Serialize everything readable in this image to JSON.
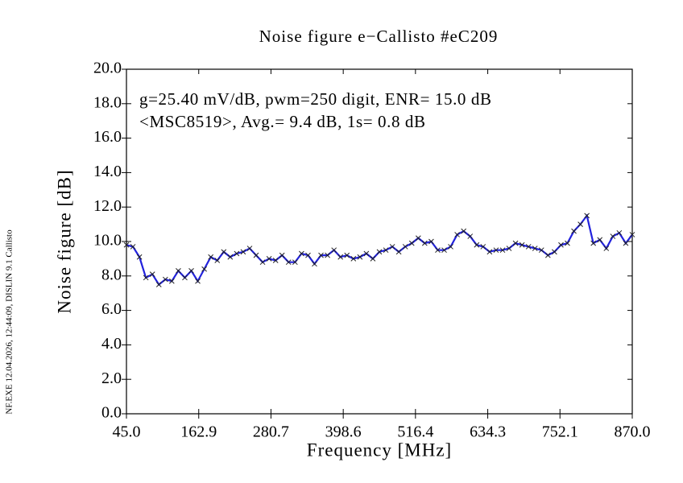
{
  "chart_data": {
    "type": "line",
    "title": "Noise figure e−Callisto #eC209",
    "annotations": [
      "g=25.40 mV/dB, pwm=250 digit, ENR= 15.0 dB",
      "<MSC8519>, Avg.= 9.4 dB, 1s= 0.8 dB"
    ],
    "side_text": "NF.EXE 12.04.2026, 12:44:09, DISLIN 9.1 Callisto",
    "xlabel": "Frequency [MHz]",
    "ylabel": "Noise figure [dB]",
    "xlim": [
      45.0,
      870.0
    ],
    "ylim": [
      0,
      20
    ],
    "xticks": [
      {
        "value": 45,
        "label": "45.0"
      },
      162.9,
      280.7,
      398.6,
      516.4,
      634.3,
      752.1,
      {
        "value": 870,
        "label": "870.0"
      }
    ],
    "yticks": [
      {
        "value": 0,
        "label": "0.0"
      },
      {
        "value": 2,
        "label": "2.0"
      },
      {
        "value": 4,
        "label": "4.0"
      },
      {
        "value": 6,
        "label": "6.0"
      },
      {
        "value": 8,
        "label": "8.0"
      },
      {
        "value": 10,
        "label": "10.0"
      },
      {
        "value": 12,
        "label": "12.0"
      },
      {
        "value": 14,
        "label": "14.0"
      },
      {
        "value": 16,
        "label": "16.0"
      },
      {
        "value": 18,
        "label": "18.0"
      },
      {
        "value": 20,
        "label": "20.0"
      }
    ],
    "x": [
      45.0,
      55.6,
      66.2,
      76.7,
      87.3,
      97.9,
      108.5,
      119.0,
      129.6,
      140.2,
      150.8,
      161.3,
      171.9,
      182.5,
      193.1,
      203.7,
      214.2,
      224.8,
      235.4,
      246.0,
      256.5,
      267.1,
      277.7,
      288.3,
      298.8,
      309.4,
      320.0,
      330.6,
      341.2,
      351.7,
      362.3,
      372.9,
      383.5,
      394.0,
      404.6,
      415.2,
      425.8,
      436.3,
      446.9,
      457.5,
      468.1,
      478.7,
      489.2,
      499.8,
      510.4,
      521.0,
      531.5,
      542.1,
      552.7,
      563.3,
      573.8,
      584.4,
      595.0,
      605.6,
      616.2,
      626.7,
      637.3,
      647.9,
      658.5,
      669.0,
      679.6,
      690.2,
      700.8,
      711.3,
      721.9,
      732.5,
      743.1,
      753.7,
      764.2,
      774.8,
      785.4,
      796.0,
      806.5,
      817.1,
      827.7,
      838.3,
      848.8,
      859.4,
      870.0
    ],
    "series": [
      {
        "color": "#2222dd",
        "values": [
          9.8,
          9.7,
          9.1,
          7.9,
          8.1,
          7.5,
          7.8,
          7.7,
          8.3,
          7.9,
          8.3,
          7.7,
          8.4,
          9.1,
          8.9,
          9.4,
          9.1,
          9.3,
          9.4,
          9.6,
          9.2,
          8.8,
          9.0,
          8.9,
          9.2,
          8.8,
          8.8,
          9.3,
          9.2,
          8.7,
          9.2,
          9.2,
          9.5,
          9.1,
          9.2,
          9.0,
          9.1,
          9.3,
          9.0,
          9.4,
          9.5,
          9.7,
          9.4,
          9.7,
          9.9,
          10.2,
          9.9,
          10.0,
          9.5,
          9.5,
          9.7,
          10.4,
          10.6,
          10.3,
          9.8,
          9.7,
          9.4,
          9.5,
          9.5,
          9.6,
          9.9,
          9.8,
          9.7,
          9.6,
          9.5,
          9.2,
          9.4,
          9.8,
          9.9,
          10.6,
          11.0,
          11.5,
          9.9,
          10.1,
          9.6,
          10.3,
          10.5,
          9.9,
          10.4
        ]
      }
    ]
  }
}
